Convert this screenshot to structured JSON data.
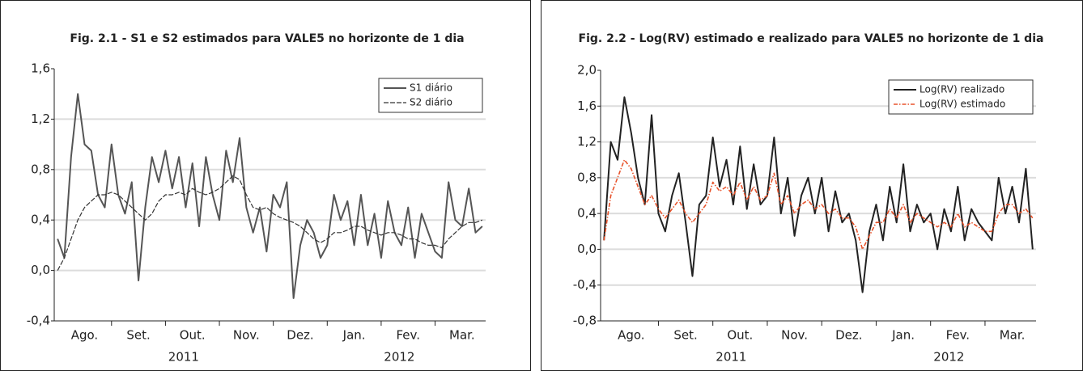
{
  "chart_data": [
    {
      "type": "line",
      "title": "Fig. 2.1 - S1 e S2 estimados para VALE5 no horizonte de 1 dia",
      "categories": [
        null,
        null,
        null,
        null,
        "Ago.",
        null,
        null,
        null,
        null,
        null,
        null,
        null,
        "Set.",
        null,
        null,
        null,
        null,
        null,
        null,
        null,
        "Out.",
        null,
        null,
        null,
        null,
        null,
        null,
        null,
        "Nov.",
        null,
        null,
        null,
        null,
        null,
        null,
        null,
        "Dez.",
        null,
        null,
        null,
        null,
        null,
        null,
        null,
        "Jan.",
        null,
        null,
        null,
        null,
        null,
        null,
        null,
        "Fev.",
        null,
        null,
        null,
        null,
        null,
        null,
        null,
        "Mar.",
        null,
        null,
        null
      ],
      "year_labels": [
        "2011",
        "2012"
      ],
      "series": [
        {
          "name": "S1 diário",
          "color": "#555555",
          "line_style": "solid",
          "values": [
            0.25,
            0.1,
            0.9,
            1.4,
            1.0,
            0.95,
            0.6,
            0.5,
            1.0,
            0.6,
            0.45,
            0.7,
            -0.08,
            0.5,
            0.9,
            0.7,
            0.95,
            0.65,
            0.9,
            0.5,
            0.85,
            0.35,
            0.9,
            0.6,
            0.4,
            0.95,
            0.7,
            1.05,
            0.5,
            0.3,
            0.5,
            0.15,
            0.6,
            0.5,
            0.7,
            -0.22,
            0.2,
            0.4,
            0.3,
            0.1,
            0.2,
            0.6,
            0.4,
            0.55,
            0.2,
            0.6,
            0.2,
            0.45,
            0.1,
            0.55,
            0.3,
            0.2,
            0.5,
            0.1,
            0.45,
            0.3,
            0.15,
            0.1,
            0.7,
            0.4,
            0.35,
            0.65,
            0.3,
            0.35
          ]
        },
        {
          "name": "S2 diário",
          "color": "#333333",
          "line_style": "dashed",
          "values": [
            0.0,
            0.1,
            0.25,
            0.4,
            0.5,
            0.55,
            0.6,
            0.6,
            0.62,
            0.6,
            0.55,
            0.5,
            0.45,
            0.4,
            0.45,
            0.55,
            0.6,
            0.6,
            0.62,
            0.6,
            0.65,
            0.62,
            0.6,
            0.62,
            0.65,
            0.7,
            0.75,
            0.72,
            0.6,
            0.5,
            0.48,
            0.5,
            0.45,
            0.42,
            0.4,
            0.38,
            0.35,
            0.3,
            0.25,
            0.22,
            0.25,
            0.3,
            0.3,
            0.32,
            0.35,
            0.35,
            0.32,
            0.3,
            0.28,
            0.3,
            0.3,
            0.28,
            0.25,
            0.25,
            0.22,
            0.2,
            0.2,
            0.18,
            0.25,
            0.3,
            0.35,
            0.38,
            0.38,
            0.4
          ]
        }
      ],
      "ylim": [
        -0.4,
        1.6
      ],
      "yticks": [
        {
          "value": -0.4,
          "label": "-0,4"
        },
        {
          "value": 0,
          "label": "0,0"
        },
        {
          "value": 0.4,
          "label": "0,4"
        },
        {
          "value": 0.8,
          "label": "0,8"
        },
        {
          "value": 1.2,
          "label": "1,2"
        },
        {
          "value": 1.6,
          "label": "1,6"
        }
      ],
      "grid": true,
      "legend": "top-right"
    },
    {
      "type": "line",
      "title": "Fig. 2.2 - Log(RV) estimado e realizado para VALE5 no horizonte de 1 dia",
      "categories": [
        null,
        null,
        null,
        null,
        "Ago.",
        null,
        null,
        null,
        null,
        null,
        null,
        null,
        "Set.",
        null,
        null,
        null,
        null,
        null,
        null,
        null,
        "Out.",
        null,
        null,
        null,
        null,
        null,
        null,
        null,
        "Nov.",
        null,
        null,
        null,
        null,
        null,
        null,
        null,
        "Dez.",
        null,
        null,
        null,
        null,
        null,
        null,
        null,
        "Jan.",
        null,
        null,
        null,
        null,
        null,
        null,
        null,
        "Fev.",
        null,
        null,
        null,
        null,
        null,
        null,
        null,
        "Mar.",
        null,
        null,
        null
      ],
      "year_labels": [
        "2011",
        "2012"
      ],
      "series": [
        {
          "name": "Log(RV) realizado",
          "color": "#222222",
          "line_style": "solid",
          "values": [
            0.1,
            1.2,
            1.0,
            1.7,
            1.3,
            0.8,
            0.5,
            1.5,
            0.4,
            0.2,
            0.6,
            0.85,
            0.3,
            -0.3,
            0.5,
            0.6,
            1.25,
            0.7,
            1.0,
            0.5,
            1.15,
            0.45,
            0.95,
            0.5,
            0.6,
            1.25,
            0.4,
            0.8,
            0.15,
            0.6,
            0.8,
            0.4,
            0.8,
            0.2,
            0.65,
            0.3,
            0.4,
            0.1,
            -0.48,
            0.2,
            0.5,
            0.1,
            0.7,
            0.3,
            0.95,
            0.2,
            0.5,
            0.3,
            0.4,
            0.0,
            0.45,
            0.2,
            0.7,
            0.1,
            0.45,
            0.3,
            0.2,
            0.1,
            0.8,
            0.4,
            0.7,
            0.3,
            0.9,
            0.0
          ]
        },
        {
          "name": "Log(RV) estimado",
          "color": "#e8532b",
          "line_style": "dashdot",
          "values": [
            0.1,
            0.6,
            0.8,
            1.0,
            0.9,
            0.7,
            0.5,
            0.6,
            0.45,
            0.35,
            0.45,
            0.55,
            0.4,
            0.3,
            0.4,
            0.5,
            0.75,
            0.65,
            0.7,
            0.6,
            0.75,
            0.55,
            0.7,
            0.55,
            0.6,
            0.85,
            0.5,
            0.6,
            0.4,
            0.5,
            0.55,
            0.45,
            0.5,
            0.4,
            0.45,
            0.35,
            0.35,
            0.25,
            0.0,
            0.15,
            0.3,
            0.3,
            0.45,
            0.35,
            0.5,
            0.3,
            0.4,
            0.35,
            0.3,
            0.25,
            0.3,
            0.25,
            0.4,
            0.25,
            0.3,
            0.25,
            0.2,
            0.2,
            0.4,
            0.5,
            0.5,
            0.4,
            0.45,
            0.35
          ]
        }
      ],
      "ylim": [
        -0.8,
        2.0
      ],
      "yticks": [
        {
          "value": -0.8,
          "label": "-0,8"
        },
        {
          "value": -0.4,
          "label": "-0,4"
        },
        {
          "value": 0,
          "label": "0,0"
        },
        {
          "value": 0.4,
          "label": "0,4"
        },
        {
          "value": 0.8,
          "label": "0,8"
        },
        {
          "value": 1.2,
          "label": "1,2"
        },
        {
          "value": 1.6,
          "label": "1,6"
        },
        {
          "value": 2.0,
          "label": "2,0"
        }
      ],
      "grid": true,
      "legend": "top-right"
    }
  ]
}
